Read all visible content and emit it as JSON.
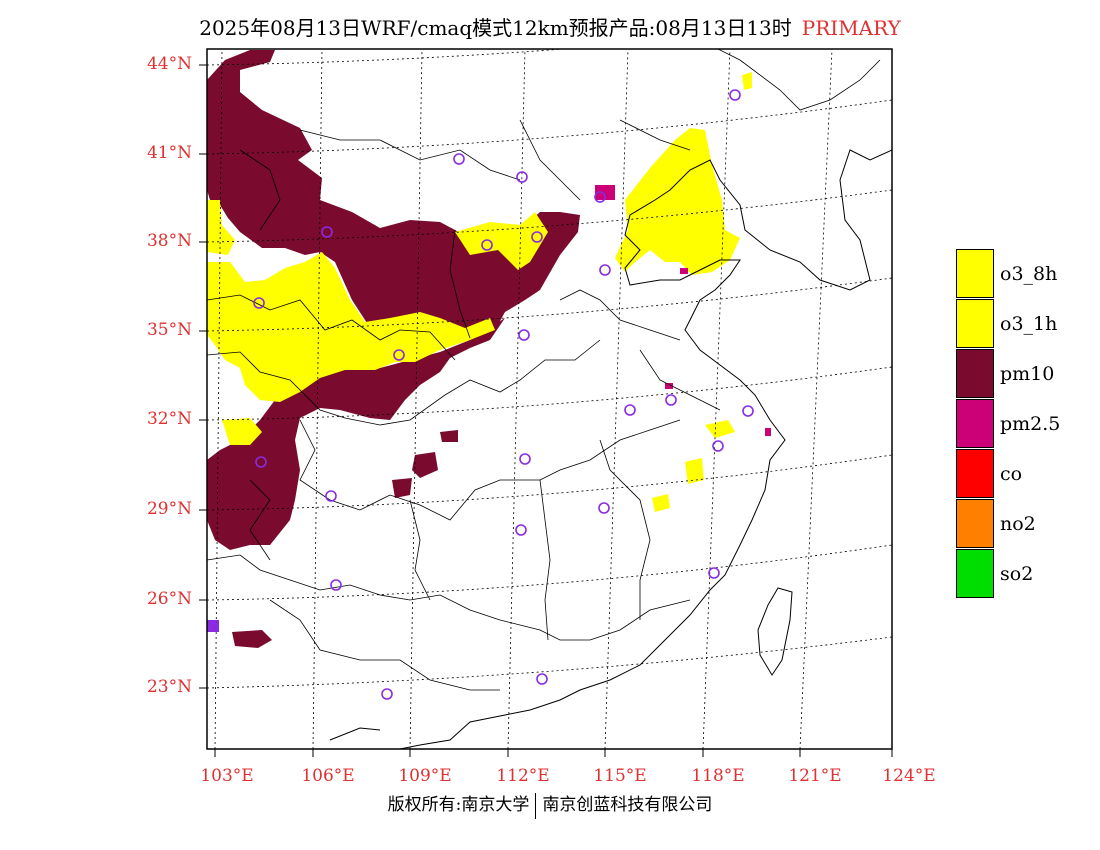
{
  "title": {
    "main": "2025年08月13日WRF/cmaq模式12km预报产品:08月13日13时",
    "tag": "PRIMARY"
  },
  "axes": {
    "latitudes": [
      "23°N",
      "26°N",
      "29°N",
      "32°N",
      "35°N",
      "38°N",
      "41°N",
      "44°N"
    ],
    "longitudes": [
      "103°E",
      "106°E",
      "109°E",
      "112°E",
      "115°E",
      "118°E",
      "121°E",
      "124°E"
    ]
  },
  "legend": {
    "items": [
      {
        "label": "o3_8h",
        "color": "#ffff00"
      },
      {
        "label": "o3_1h",
        "color": "#ffff00"
      },
      {
        "label": "pm10",
        "color": "#7a0a2e"
      },
      {
        "label": "pm2.5",
        "color": "#cc0077"
      },
      {
        "label": "co",
        "color": "#ff0000"
      },
      {
        "label": "no2",
        "color": "#ff8000"
      },
      {
        "label": "so2",
        "color": "#00dd00"
      }
    ]
  },
  "colors": {
    "label_red": "#e03030",
    "pm10": "#7a0a2e",
    "o3": "#ffff00",
    "pm25": "#cc0077",
    "station_circle": "#8a2be2"
  },
  "footer": {
    "left": "版权所有:南京大学",
    "right": "南京创蓝科技有限公司"
  }
}
